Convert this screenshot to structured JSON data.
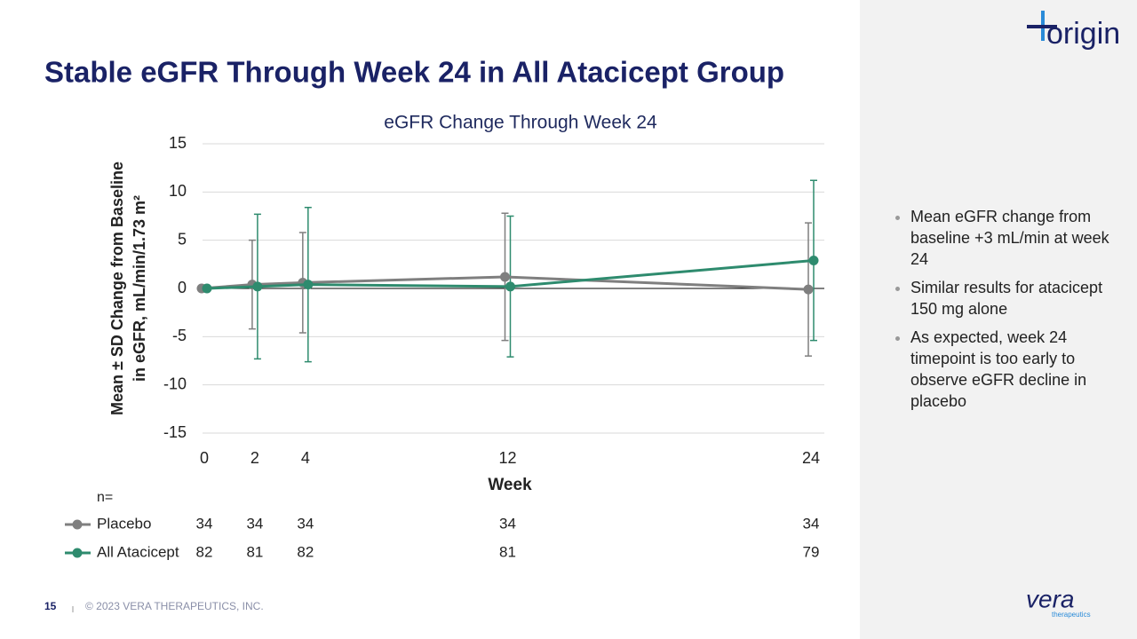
{
  "header": {
    "title": "Stable eGFR Through Week 24 in All Atacicept Group"
  },
  "chart_data": {
    "type": "line",
    "title": "eGFR Change Through Week 24",
    "y_label": [
      "Mean ± SD Change from Baseline",
      "in eGFR, mL/min/1.73 m²"
    ],
    "x_label": "Week",
    "x": [
      0,
      2,
      4,
      12,
      24
    ],
    "xlim": [
      0,
      24
    ],
    "xticks": [
      0,
      2,
      4,
      12,
      24
    ],
    "ylim": [
      -15,
      15
    ],
    "yticks": [
      -15,
      -10,
      -5,
      0,
      5,
      10,
      15
    ],
    "grid": true,
    "n_label": "n=",
    "series": [
      {
        "name": "Placebo",
        "color": "#7f7f7f",
        "values": [
          0,
          0.4,
          0.6,
          1.2,
          -0.1
        ],
        "errors": [
          null,
          4.6,
          5.2,
          6.6,
          6.9
        ],
        "n": [
          34,
          34,
          34,
          34,
          34
        ]
      },
      {
        "name": "All Atacicept",
        "color": "#2e8b6e",
        "values": [
          0,
          0.2,
          0.4,
          0.2,
          2.9
        ],
        "errors": [
          null,
          7.5,
          8.0,
          7.3,
          8.3
        ],
        "n": [
          82,
          81,
          82,
          81,
          79
        ]
      }
    ]
  },
  "bullets": [
    "Mean eGFR change from baseline +3 mL/min at week 24",
    "Similar results for atacicept 150 mg alone",
    "As expected, week 24 timepoint is too early to observe eGFR decline in placebo"
  ],
  "footer": {
    "page": "15",
    "copyright": "© 2023 VERA THERAPEUTICS, INC."
  },
  "logos": {
    "origin": "origin",
    "vera": "vera",
    "vera_sub": "therapeutics"
  }
}
